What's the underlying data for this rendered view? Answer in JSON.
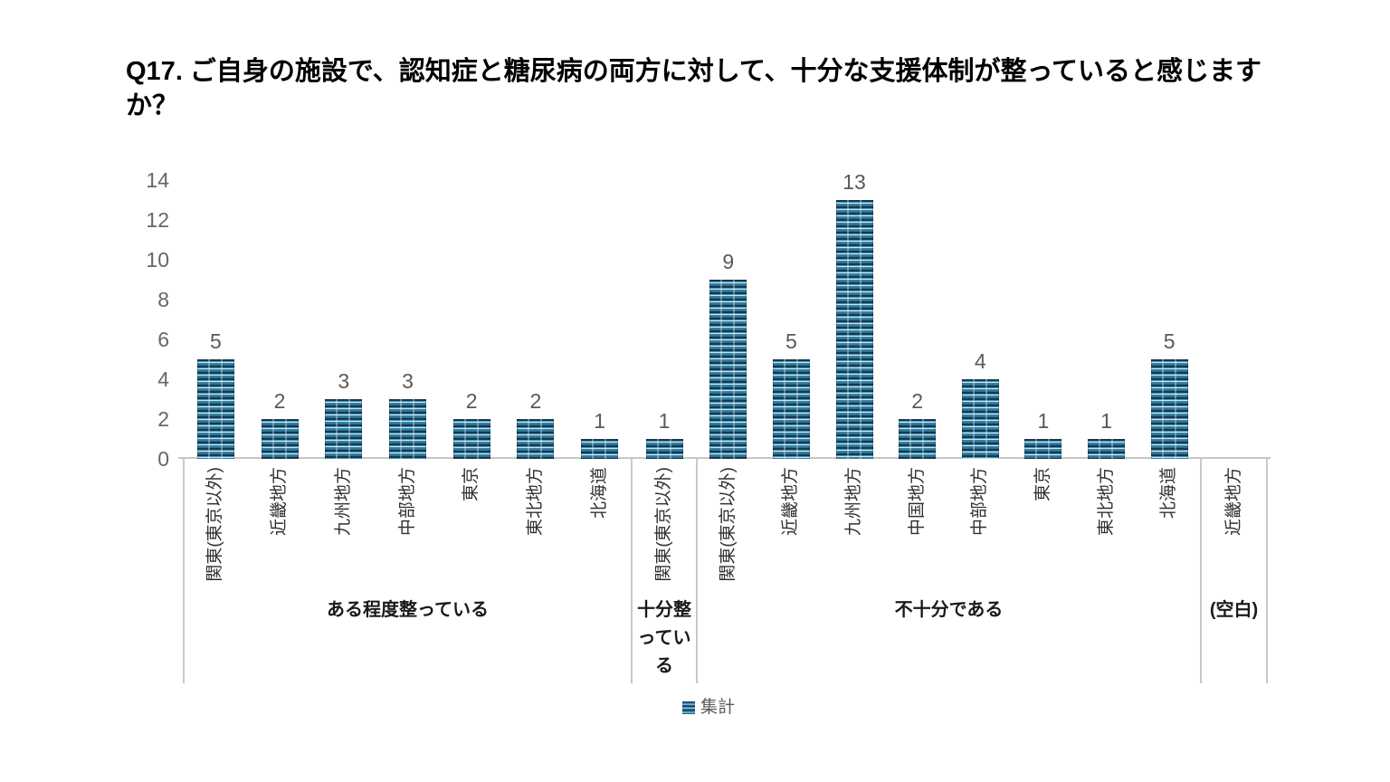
{
  "chart_data": {
    "type": "bar",
    "title": "Q17. ご自身の施設で、認知症と糖尿病の両方に対して、十分な支援体制が整っていると感じますか？",
    "series": "集計",
    "xlabel": "",
    "ylabel": "",
    "ylim": [
      0,
      14
    ],
    "yticks": [
      0,
      2,
      4,
      6,
      8,
      10,
      12,
      14
    ],
    "grid": false,
    "legend_position": "bottom",
    "colors": {
      "bar_dark": "#16394d",
      "bar_light": "#4795ba",
      "bar_stripe": "#cfe3ed",
      "axis_line": "#c9c9c9",
      "tick_text": "#666666",
      "value_text": "#595959"
    },
    "groups": [
      {
        "label": "ある程度整っている",
        "categories": [
          "関東(東京以外)",
          "近畿地方",
          "九州地方",
          "中部地方",
          "東京",
          "東北地方",
          "北海道"
        ],
        "values": [
          5,
          2,
          3,
          3,
          2,
          2,
          1
        ]
      },
      {
        "label": "十分整っている",
        "categories": [
          "関東(東京以外)"
        ],
        "values": [
          1
        ]
      },
      {
        "label": "不十分である",
        "categories": [
          "関東(東京以外)",
          "近畿地方",
          "九州地方",
          "中国地方",
          "中部地方",
          "東京",
          "東北地方",
          "北海道"
        ],
        "values": [
          9,
          5,
          13,
          2,
          4,
          1,
          1,
          5
        ]
      },
      {
        "label": "(空白)",
        "categories": [
          "近畿地方"
        ],
        "values": [
          null
        ]
      }
    ]
  }
}
